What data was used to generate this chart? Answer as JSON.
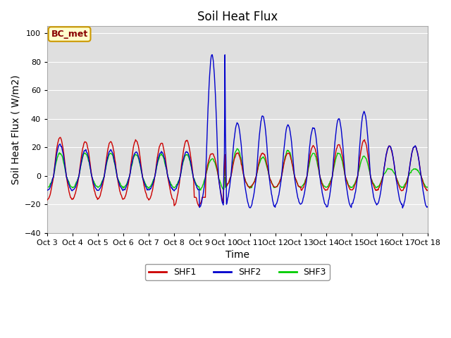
{
  "title": "Soil Heat Flux",
  "ylabel": "Soil Heat Flux ( W/m2)",
  "xlabel": "Time",
  "ylim": [
    -40,
    105
  ],
  "yticks": [
    -40,
    -20,
    0,
    20,
    40,
    60,
    80,
    100
  ],
  "xlim_days": [
    0,
    15
  ],
  "xtick_labels": [
    "Oct 3",
    "Oct 4",
    "Oct 5",
    "Oct 6",
    "Oct 7",
    "Oct 8",
    "Oct 9",
    "Oct 10",
    "Oct 11",
    "Oct 12",
    "Oct 13",
    "Oct 14",
    "Oct 15",
    "Oct 16",
    "Oct 17",
    "Oct 18"
  ],
  "shf1_color": "#cc0000",
  "shf2_color": "#0000cc",
  "shf3_color": "#00cc00",
  "fig_bg": "#ffffff",
  "plot_bg": "#e8e8e8",
  "grid_color": "#ffffff",
  "annotation_text": "BC_met",
  "annotation_bg": "#ffffcc",
  "annotation_border": "#cc9900",
  "linewidth": 1.0,
  "title_fontsize": 12,
  "label_fontsize": 10,
  "tick_fontsize": 8,
  "legend_fontsize": 9
}
